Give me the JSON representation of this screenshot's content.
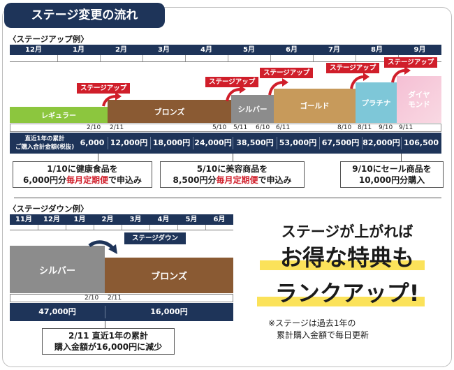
{
  "header": {
    "title": "ステージ変更の流れ"
  },
  "up": {
    "label": "〈ステージアップ例〉",
    "months": [
      "12月",
      "1月",
      "2月",
      "3月",
      "4月",
      "5月",
      "6月",
      "7月",
      "8月",
      "9月"
    ],
    "stages": {
      "regular": "レギュラー",
      "bronze": "ブロンズ",
      "silver": "シルバー",
      "gold": "ゴールド",
      "platinum": "プラチナ",
      "diamond_1": "ダイヤ",
      "diamond_2": "モンド"
    },
    "ribbon": "ステージアップ",
    "dates": {
      "d1": "2/10",
      "d2": "2/11",
      "d3": "5/10",
      "d4": "5/11",
      "d5": "6/10",
      "d6": "6/11",
      "d7": "8/10",
      "d8": "8/11",
      "d9": "9/10",
      "d10": "9/11"
    },
    "value_label_1": "直近1年の累計",
    "value_label_2": "ご購入合計金額(税抜)",
    "values": [
      "6,000円",
      "12,000円",
      "18,000円",
      "24,000円",
      "38,500円",
      "53,000円",
      "67,500円",
      "82,000円",
      "106,500円"
    ],
    "notes": {
      "n1_line1": "1/10に健康食品を",
      "n1_amount": "6,000円分",
      "n1_red": "毎月定期便",
      "n1_tail": "で申込み",
      "n2_line1": "5/10に美容商品を",
      "n2_amount": "8,500円分",
      "n2_red": "毎月定期便",
      "n2_tail": "で申込み",
      "n3_line1": "9/10にセール商品を",
      "n3_line2": "10,000円分購入"
    }
  },
  "down": {
    "label": "〈ステージダウン例〉",
    "months": [
      "11月",
      "12月",
      "1月",
      "2月",
      "3月",
      "4月",
      "5月",
      "6月"
    ],
    "ribbon": "ステージダウン",
    "stages": {
      "silver": "シルバー",
      "bronze": "ブロンズ"
    },
    "dates": {
      "d1": "2/10",
      "d2": "2/11"
    },
    "values": [
      "47,000円",
      "16,000円"
    ],
    "note_line1": "2/11 直近1年の累計",
    "note_line2": "購入金額が16,000円に減少"
  },
  "promo": {
    "line1": "ステージが上がれば",
    "line2": "お得な特典も",
    "line3": "ランクアップ!"
  },
  "footnote": {
    "line1": "※ステージは過去1年の",
    "line2": "累計購入金額で毎日更新"
  },
  "colors": {
    "navy": "#1e3459",
    "regular": "#8cc63e",
    "bronze": "#8a5a33",
    "silver": "#8c8c8c",
    "gold": "#c79a5b",
    "platinum": "#7ec7d8",
    "diamond": "#f5bfd4",
    "red": "#d01e2a",
    "highlight": "#fbe25a"
  }
}
